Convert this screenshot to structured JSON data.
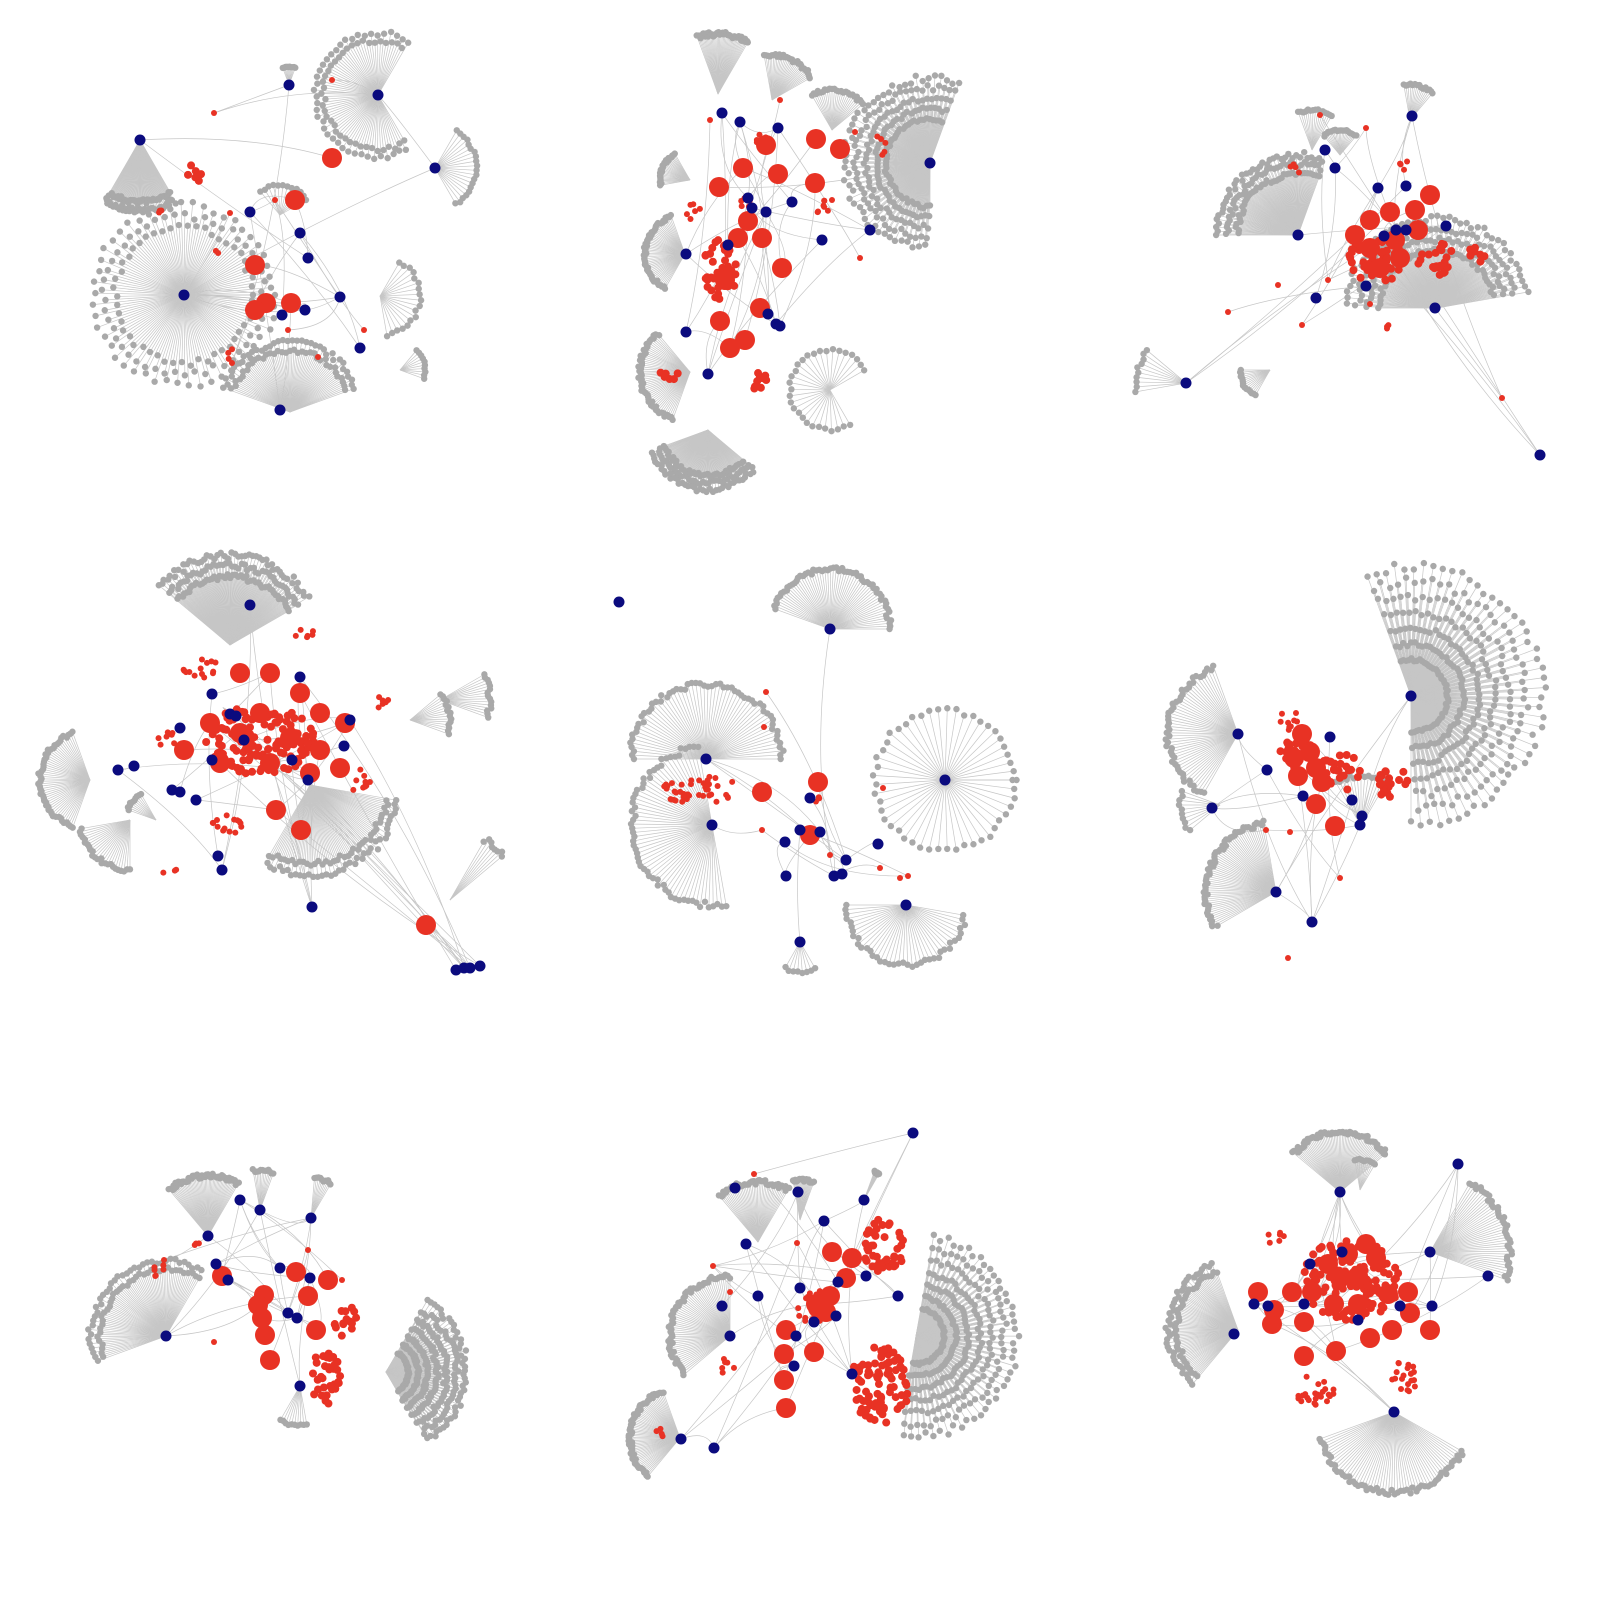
{
  "colors": {
    "background": "#ffffff",
    "hub_node": "#0b0b7e",
    "red_node": "#e83224",
    "leaf_node": "#a9a9a9",
    "edge": "#c6c6c6"
  },
  "layout": {
    "rows": 3,
    "cols": 3
  },
  "legend": [],
  "panels": [
    {
      "id": "panel-1"
    },
    {
      "id": "panel-2"
    },
    {
      "id": "panel-3"
    },
    {
      "id": "panel-4"
    },
    {
      "id": "panel-5"
    },
    {
      "id": "panel-6"
    },
    {
      "id": "panel-7"
    },
    {
      "id": "panel-8"
    },
    {
      "id": "panel-9"
    }
  ]
}
